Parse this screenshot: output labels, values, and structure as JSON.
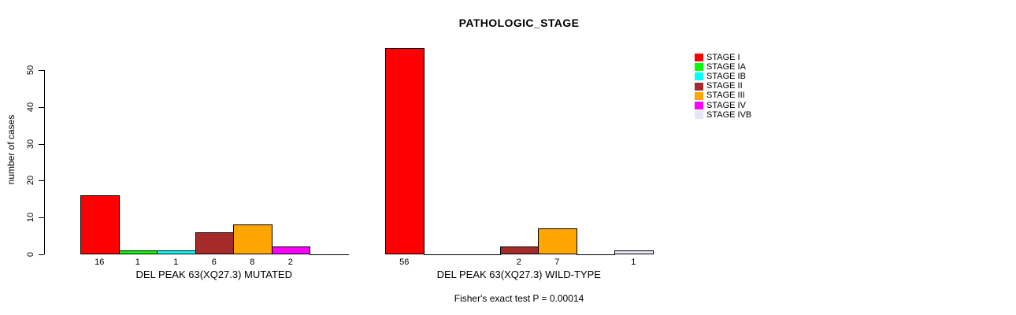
{
  "chart_data": {
    "type": "bar",
    "title": "PATHOLOGIC_STAGE",
    "ylabel": "number of cases",
    "yticks": [
      0,
      10,
      20,
      30,
      40,
      50
    ],
    "ylim": [
      0,
      58
    ],
    "grid": false,
    "legend_position": "right",
    "categories": [
      "STAGE I",
      "STAGE IA",
      "STAGE IB",
      "STAGE II",
      "STAGE III",
      "STAGE IV",
      "STAGE IVB"
    ],
    "legend": [
      {
        "label": "STAGE I",
        "color": "#FF0000"
      },
      {
        "label": "STAGE IA",
        "color": "#00FF00"
      },
      {
        "label": "STAGE IB",
        "color": "#00FFFF"
      },
      {
        "label": "STAGE II",
        "color": "#A52A2A"
      },
      {
        "label": "STAGE III",
        "color": "#FFA500"
      },
      {
        "label": "STAGE IV",
        "color": "#FF00FF"
      },
      {
        "label": "STAGE IVB",
        "color": "#E6E6FA"
      }
    ],
    "series": [
      {
        "name": "DEL PEAK 63(XQ27.3) MUTATED",
        "values": [
          16,
          1,
          1,
          6,
          8,
          2,
          0
        ]
      },
      {
        "name": "DEL PEAK 63(XQ27.3) WILD-TYPE",
        "values": [
          56,
          0,
          0,
          2,
          7,
          0,
          1
        ]
      }
    ],
    "bar_border_color": "#000000",
    "footnote": "Fisher's exact test P = 0.00014"
  }
}
